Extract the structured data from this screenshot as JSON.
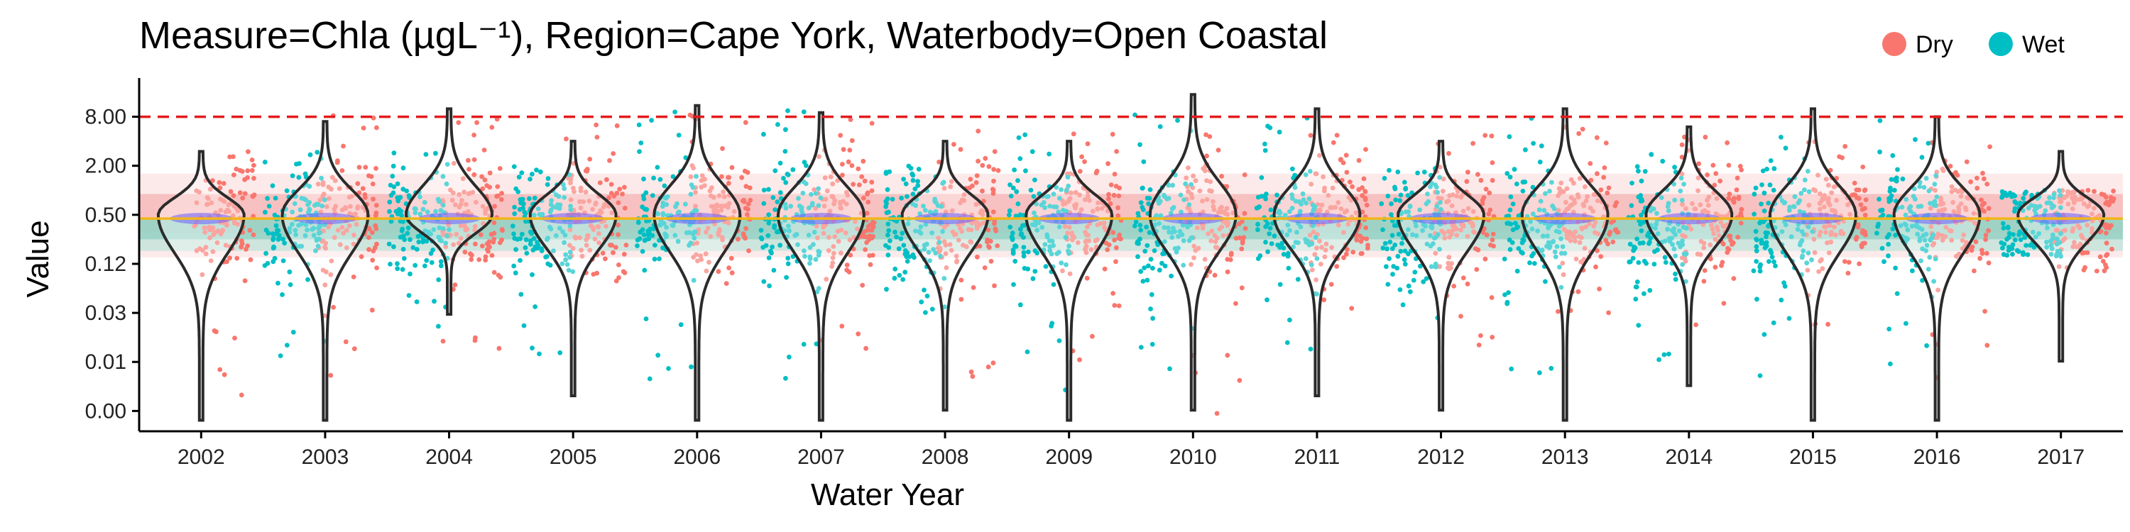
{
  "chart_data": {
    "type": "scatter",
    "title": "Measure=Chla (µgL⁻¹), Region=Cape York, Waterbody=Open Coastal",
    "xlabel": "Water Year",
    "ylabel": "Value",
    "categories": [
      "2002",
      "2003",
      "2004",
      "2005",
      "2006",
      "2007",
      "2008",
      "2009",
      "2010",
      "2011",
      "2012",
      "2013",
      "2014",
      "2015",
      "2016",
      "2017"
    ],
    "y_scale": "log",
    "y_ticks": [
      {
        "label": "8.00",
        "value": 8
      },
      {
        "label": "2.00",
        "value": 2
      },
      {
        "label": "0.50",
        "value": 0.5
      },
      {
        "label": "0.12",
        "value": 0.125
      },
      {
        "label": "0.03",
        "value": 0.03125
      },
      {
        "label": "0.01",
        "value": 0.0078125
      },
      {
        "label": "0.00",
        "value": 0.001953125
      }
    ],
    "ylim": [
      0.0011,
      16
    ],
    "guideline": 8,
    "median_line": 0.45,
    "bands": [
      {
        "from": 0.15,
        "to": 1.6,
        "color": "#fbe3e3"
      },
      {
        "from": 0.3,
        "to": 0.9,
        "color": "#f5b3b3"
      },
      {
        "from": 0.18,
        "to": 0.45,
        "color": "#bfe3da"
      },
      {
        "from": 0.25,
        "to": 0.45,
        "color": "#8fcfc0"
      }
    ],
    "legend": {
      "position": "top-right",
      "entries": [
        {
          "name": "Dry",
          "color": "#F8766D"
        },
        {
          "name": "Wet",
          "color": "#00BFC4"
        }
      ]
    },
    "series": [
      {
        "name": "Dry",
        "color": "#F8766D",
        "values": [
          {
            "year": "2002",
            "median": 0.45,
            "min": 0.0015,
            "max": 3.0
          },
          {
            "year": "2003",
            "median": 0.5,
            "min": 0.0015,
            "max": 9.0
          },
          {
            "year": "2004",
            "median": 0.48,
            "min": 0.01,
            "max": 8.0
          },
          {
            "year": "2005",
            "median": 0.45,
            "min": 0.05,
            "max": 6.5
          },
          {
            "year": "2006",
            "median": 0.5,
            "min": 0.04,
            "max": 9.0
          },
          {
            "year": "2007",
            "median": 0.48,
            "min": 0.01,
            "max": 8.0
          },
          {
            "year": "2008",
            "median": 0.45,
            "min": 0.005,
            "max": 6.0
          },
          {
            "year": "2009",
            "median": 0.45,
            "min": 0.008,
            "max": 5.5
          },
          {
            "year": "2010",
            "median": 0.45,
            "min": 0.0015,
            "max": 5.0
          },
          {
            "year": "2011",
            "median": 0.5,
            "min": 0.03,
            "max": 5.0
          },
          {
            "year": "2012",
            "median": 0.45,
            "min": 0.005,
            "max": 5.0
          },
          {
            "year": "2013",
            "median": 0.48,
            "min": 0.01,
            "max": 7.0
          },
          {
            "year": "2014",
            "median": 0.45,
            "min": 0.02,
            "max": 5.0
          },
          {
            "year": "2015",
            "median": 0.5,
            "min": 0.01,
            "max": 6.0
          },
          {
            "year": "2016",
            "median": 0.45,
            "min": 0.005,
            "max": 4.0
          },
          {
            "year": "2017",
            "median": 0.45,
            "min": 0.1,
            "max": 1.0
          }
        ]
      },
      {
        "name": "Wet",
        "color": "#00BFC4",
        "values": [
          {
            "year": "2003",
            "median": 0.45,
            "min": 0.005,
            "max": 3.0
          },
          {
            "year": "2004",
            "median": 0.4,
            "min": 0.02,
            "max": 3.0
          },
          {
            "year": "2005",
            "median": 0.4,
            "min": 0.005,
            "max": 2.0
          },
          {
            "year": "2006",
            "median": 0.45,
            "min": 0.004,
            "max": 12.0
          },
          {
            "year": "2007",
            "median": 0.4,
            "min": 0.004,
            "max": 13.0
          },
          {
            "year": "2008",
            "median": 0.35,
            "min": 0.03,
            "max": 2.0
          },
          {
            "year": "2009",
            "median": 0.35,
            "min": 0.0015,
            "max": 5.0
          },
          {
            "year": "2010",
            "median": 0.4,
            "min": 0.005,
            "max": 14.0
          },
          {
            "year": "2011",
            "median": 0.45,
            "min": 0.01,
            "max": 9.0
          },
          {
            "year": "2012",
            "median": 0.4,
            "min": 0.02,
            "max": 2.0
          },
          {
            "year": "2013",
            "median": 0.4,
            "min": 0.004,
            "max": 8.0
          },
          {
            "year": "2014",
            "median": 0.35,
            "min": 0.005,
            "max": 3.0
          },
          {
            "year": "2015",
            "median": 0.4,
            "min": 0.005,
            "max": 5.0
          },
          {
            "year": "2016",
            "median": 0.4,
            "min": 0.004,
            "max": 8.0
          },
          {
            "year": "2017",
            "median": 0.4,
            "min": 0.15,
            "max": 1.0
          }
        ]
      }
    ],
    "violins": [
      {
        "year": "2002",
        "min": 0.0015,
        "max": 3.0,
        "median": 0.5
      },
      {
        "year": "2003",
        "min": 0.0015,
        "max": 7.0,
        "median": 0.5
      },
      {
        "year": "2004",
        "min": 0.03,
        "max": 10.0,
        "median": 0.5
      },
      {
        "year": "2005",
        "min": 0.003,
        "max": 4.0,
        "median": 0.5
      },
      {
        "year": "2006",
        "min": 0.0015,
        "max": 11.0,
        "median": 0.5
      },
      {
        "year": "2007",
        "min": 0.0015,
        "max": 9.0,
        "median": 0.5
      },
      {
        "year": "2008",
        "min": 0.002,
        "max": 4.0,
        "median": 0.5
      },
      {
        "year": "2009",
        "min": 0.0015,
        "max": 4.0,
        "median": 0.5
      },
      {
        "year": "2010",
        "min": 0.002,
        "max": 15.0,
        "median": 0.5
      },
      {
        "year": "2011",
        "min": 0.003,
        "max": 10.0,
        "median": 0.5
      },
      {
        "year": "2012",
        "min": 0.002,
        "max": 4.0,
        "median": 0.5
      },
      {
        "year": "2013",
        "min": 0.0015,
        "max": 10.0,
        "median": 0.5
      },
      {
        "year": "2014",
        "min": 0.004,
        "max": 6.0,
        "median": 0.5
      },
      {
        "year": "2015",
        "min": 0.0015,
        "max": 10.0,
        "median": 0.5
      },
      {
        "year": "2016",
        "min": 0.0015,
        "max": 8.0,
        "median": 0.5
      },
      {
        "year": "2017",
        "min": 0.008,
        "max": 3.0,
        "median": 0.5
      }
    ]
  }
}
